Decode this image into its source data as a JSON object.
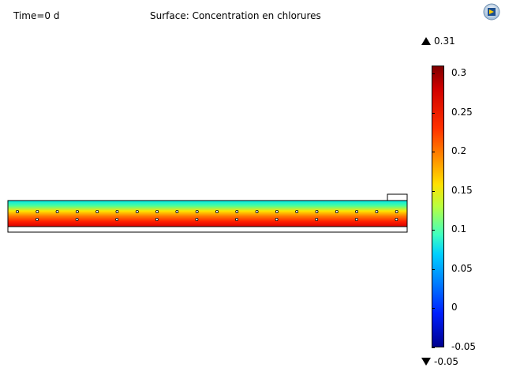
{
  "header": {
    "time_label": "Time=0 d",
    "surface_label": "Surface: Concentration en chlorures"
  },
  "chart_data": {
    "type": "heatmap",
    "title": "Surface: Concentration en chlorures",
    "colorbar": {
      "max_label": "0.31",
      "min_label": "-0.05",
      "range": [
        -0.05,
        0.31
      ],
      "ticks": [
        0.3,
        0.25,
        0.2,
        0.15,
        0.1,
        0.05,
        0,
        -0.05
      ],
      "tick_labels": [
        "0.3",
        "0.25",
        "0.2",
        "0.15",
        "0.1",
        "0.05",
        "0",
        "-0.05"
      ],
      "colormap": "rainbow"
    },
    "field": {
      "top_value": 0.12,
      "bottom_value": 0.31,
      "description_colors": [
        "#00e5ee",
        "#4cff9a",
        "#ffe600",
        "#ff7a00",
        "#ff2000",
        "#d80000"
      ]
    },
    "markers": {
      "upper_row_count": 20,
      "lower_row_count": 10
    }
  },
  "colors": {
    "outline": "#000000",
    "marker_fill": "#ffffff"
  }
}
